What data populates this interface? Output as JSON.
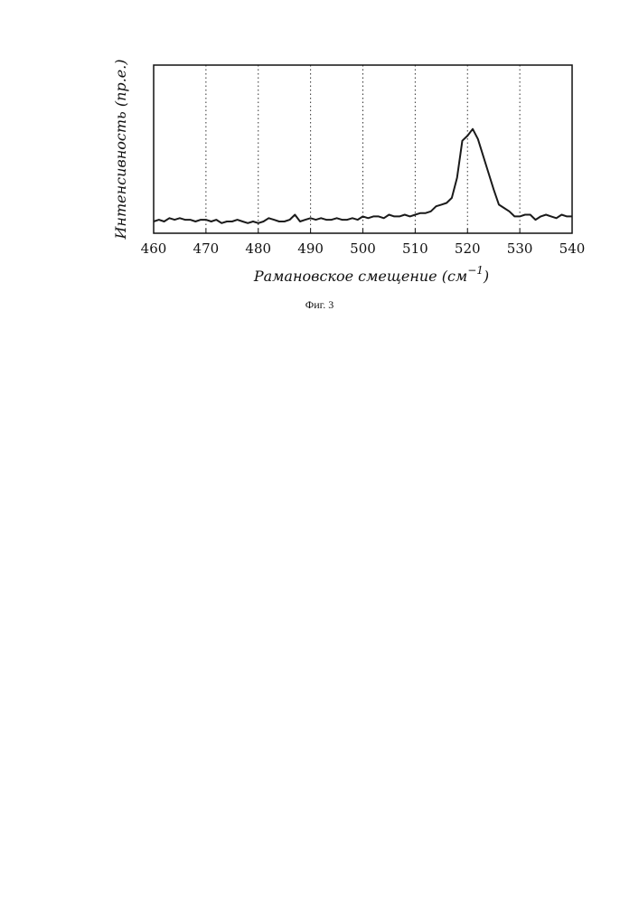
{
  "chart_data": {
    "type": "line",
    "xlabel": "Рамановское смещение (см",
    "xlabel_sup": "−1",
    "xlabel_close": ")",
    "ylabel": "Интенсивность (пр.е.)",
    "xlim": [
      460,
      540
    ],
    "ylim": [
      0,
      10
    ],
    "xticks": [
      460,
      470,
      480,
      490,
      500,
      510,
      520,
      530,
      540
    ],
    "grid": "vertical dotted",
    "series": [
      {
        "x": [
          460,
          461,
          462,
          463,
          464,
          465,
          466,
          467,
          468,
          469,
          470,
          471,
          472,
          473,
          474,
          475,
          476,
          477,
          478,
          479,
          480,
          481,
          482,
          483,
          484,
          485,
          486,
          487,
          488,
          489,
          490,
          491,
          492,
          493,
          494,
          495,
          496,
          497,
          498,
          499,
          500,
          501,
          502,
          503,
          504,
          505,
          506,
          507,
          508,
          509,
          510,
          511,
          512,
          513,
          514,
          515,
          516,
          517,
          518,
          519,
          520,
          521,
          522,
          523,
          524,
          525,
          526,
          527,
          528,
          529,
          530,
          531,
          532,
          533,
          534,
          535,
          536,
          537,
          538,
          539,
          540
        ],
        "values": [
          0.7,
          0.8,
          0.7,
          0.9,
          0.8,
          0.9,
          0.8,
          0.8,
          0.7,
          0.8,
          0.8,
          0.7,
          0.8,
          0.6,
          0.7,
          0.7,
          0.8,
          0.7,
          0.6,
          0.7,
          0.6,
          0.7,
          0.9,
          0.8,
          0.7,
          0.7,
          0.8,
          1.1,
          0.7,
          0.8,
          0.9,
          0.8,
          0.9,
          0.8,
          0.8,
          0.9,
          0.8,
          0.8,
          0.9,
          0.8,
          1.0,
          0.9,
          1.0,
          1.0,
          0.9,
          1.1,
          1.0,
          1.0,
          1.1,
          1.0,
          1.1,
          1.2,
          1.2,
          1.3,
          1.6,
          1.7,
          1.8,
          2.1,
          3.3,
          5.5,
          5.8,
          6.2,
          5.6,
          4.6,
          3.6,
          2.6,
          1.7,
          1.5,
          1.3,
          1.0,
          1.0,
          1.1,
          1.1,
          0.8,
          1.0,
          1.1,
          1.0,
          0.9,
          1.1,
          1.0,
          1.0
        ]
      }
    ]
  },
  "caption": "Фиг. 3",
  "colors": {
    "line": "#1a1a1a",
    "axes": "#111111",
    "grid": "#333333"
  }
}
